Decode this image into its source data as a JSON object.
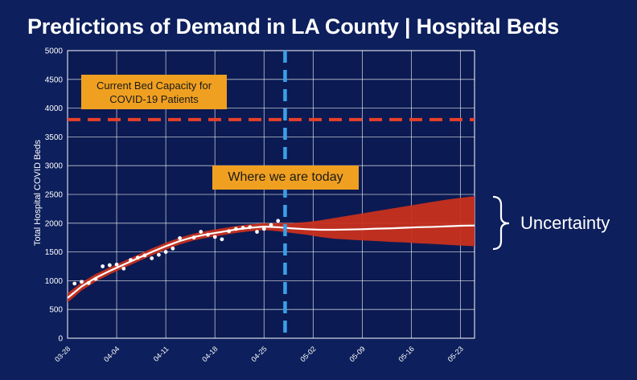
{
  "title": "Predictions of Demand in LA County | Hospital Beds",
  "annotations": {
    "capacity_line1": "Current Bed Capacity for",
    "capacity_line2": "COVID-19 Patients",
    "today": "Where we are today",
    "uncertainty": "Uncertainty"
  },
  "colors": {
    "background": "#0d1f5c",
    "band": "#c8301e",
    "line": "#ffffff",
    "capacity": "#e8402a",
    "today": "#3aa0e8",
    "callout": "#f0a020"
  },
  "chart_data": {
    "type": "line",
    "ylabel": "Total Hospital COVID Beds",
    "xlabel": "",
    "ylim": [
      0,
      5000
    ],
    "yticks": [
      0,
      500,
      1000,
      1500,
      2000,
      2500,
      3000,
      3500,
      4000,
      4500,
      5000
    ],
    "xlim_days": [
      0,
      58
    ],
    "xticks": [
      {
        "day": 0,
        "label": "03-28"
      },
      {
        "day": 7,
        "label": "04-04"
      },
      {
        "day": 14,
        "label": "04-11"
      },
      {
        "day": 21,
        "label": "04-18"
      },
      {
        "day": 28,
        "label": "04-25"
      },
      {
        "day": 35,
        "label": "05-02"
      },
      {
        "day": 42,
        "label": "05-09"
      },
      {
        "day": 49,
        "label": "05-16"
      },
      {
        "day": 56,
        "label": "05-23"
      }
    ],
    "capacity": 3800,
    "today_day": 31,
    "observed": [
      {
        "day": 1,
        "beds": 950
      },
      {
        "day": 2,
        "beds": 980
      },
      {
        "day": 3,
        "beds": 960
      },
      {
        "day": 4,
        "beds": 1030
      },
      {
        "day": 5,
        "beds": 1250
      },
      {
        "day": 6,
        "beds": 1270
      },
      {
        "day": 7,
        "beds": 1280
      },
      {
        "day": 8,
        "beds": 1210
      },
      {
        "day": 9,
        "beds": 1360
      },
      {
        "day": 10,
        "beds": 1400
      },
      {
        "day": 11,
        "beds": 1440
      },
      {
        "day": 12,
        "beds": 1390
      },
      {
        "day": 13,
        "beds": 1450
      },
      {
        "day": 14,
        "beds": 1500
      },
      {
        "day": 15,
        "beds": 1560
      },
      {
        "day": 16,
        "beds": 1740
      },
      {
        "day": 18,
        "beds": 1750
      },
      {
        "day": 19,
        "beds": 1850
      },
      {
        "day": 20,
        "beds": 1800
      },
      {
        "day": 21,
        "beds": 1760
      },
      {
        "day": 22,
        "beds": 1720
      },
      {
        "day": 23,
        "beds": 1860
      },
      {
        "day": 24,
        "beds": 1900
      },
      {
        "day": 25,
        "beds": 1920
      },
      {
        "day": 26,
        "beds": 1930
      },
      {
        "day": 27,
        "beds": 1850
      },
      {
        "day": 28,
        "beds": 1900
      },
      {
        "day": 29,
        "beds": 1970
      },
      {
        "day": 30,
        "beds": 2040
      }
    ],
    "prediction": [
      {
        "day": 0,
        "mean": 700,
        "low": 620,
        "high": 780
      },
      {
        "day": 2,
        "mean": 900,
        "low": 830,
        "high": 970
      },
      {
        "day": 4,
        "mean": 1050,
        "low": 985,
        "high": 1115
      },
      {
        "day": 6,
        "mean": 1170,
        "low": 1110,
        "high": 1230
      },
      {
        "day": 8,
        "mean": 1280,
        "low": 1220,
        "high": 1340
      },
      {
        "day": 10,
        "mean": 1390,
        "low": 1330,
        "high": 1450
      },
      {
        "day": 12,
        "mean": 1500,
        "low": 1440,
        "high": 1560
      },
      {
        "day": 14,
        "mean": 1600,
        "low": 1540,
        "high": 1660
      },
      {
        "day": 16,
        "mean": 1690,
        "low": 1630,
        "high": 1750
      },
      {
        "day": 18,
        "mean": 1760,
        "low": 1700,
        "high": 1820
      },
      {
        "day": 20,
        "mean": 1810,
        "low": 1750,
        "high": 1870
      },
      {
        "day": 22,
        "mean": 1850,
        "low": 1790,
        "high": 1910
      },
      {
        "day": 24,
        "mean": 1890,
        "low": 1830,
        "high": 1950
      },
      {
        "day": 26,
        "mean": 1920,
        "low": 1860,
        "high": 1980
      },
      {
        "day": 28,
        "mean": 1940,
        "low": 1880,
        "high": 2000
      },
      {
        "day": 30,
        "mean": 1930,
        "low": 1860,
        "high": 2000
      },
      {
        "day": 32,
        "mean": 1910,
        "low": 1830,
        "high": 2000
      },
      {
        "day": 34,
        "mean": 1895,
        "low": 1800,
        "high": 2020
      },
      {
        "day": 36,
        "mean": 1885,
        "low": 1760,
        "high": 2050
      },
      {
        "day": 38,
        "mean": 1885,
        "low": 1730,
        "high": 2090
      },
      {
        "day": 40,
        "mean": 1890,
        "low": 1715,
        "high": 2130
      },
      {
        "day": 42,
        "mean": 1895,
        "low": 1700,
        "high": 2170
      },
      {
        "day": 44,
        "mean": 1905,
        "low": 1690,
        "high": 2210
      },
      {
        "day": 46,
        "mean": 1910,
        "low": 1675,
        "high": 2250
      },
      {
        "day": 48,
        "mean": 1920,
        "low": 1665,
        "high": 2290
      },
      {
        "day": 50,
        "mean": 1930,
        "low": 1650,
        "high": 2330
      },
      {
        "day": 52,
        "mean": 1935,
        "low": 1640,
        "high": 2370
      },
      {
        "day": 54,
        "mean": 1945,
        "low": 1625,
        "high": 2410
      },
      {
        "day": 56,
        "mean": 1955,
        "low": 1612,
        "high": 2440
      },
      {
        "day": 58,
        "mean": 1960,
        "low": 1600,
        "high": 2470
      }
    ]
  }
}
